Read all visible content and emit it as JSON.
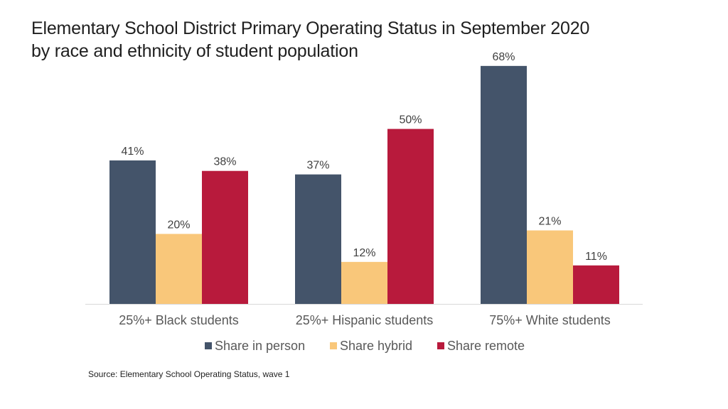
{
  "title": {
    "line1": "Elementary School District Primary Operating Status in September 2020",
    "line2": "by race and ethnicity of student population"
  },
  "source": "Source: Elementary School Operating Status, wave 1",
  "chart_data": {
    "type": "bar",
    "categories": [
      "25%+ Black students",
      "25%+ Hispanic students",
      "75%+ White students"
    ],
    "series": [
      {
        "name": "Share in person",
        "color": "#44546a",
        "values": [
          41,
          37,
          68
        ],
        "labels": [
          "41%",
          "37%",
          "68%"
        ]
      },
      {
        "name": "Share hybrid",
        "color": "#f9c77a",
        "values": [
          20,
          12,
          21
        ],
        "labels": [
          "20%",
          "12%",
          "21%"
        ]
      },
      {
        "name": "Share remote",
        "color": "#b81a3c",
        "values": [
          38,
          50,
          11
        ],
        "labels": [
          "38%",
          "50%",
          "11%"
        ]
      }
    ],
    "ylim": [
      0,
      70
    ],
    "grid": false,
    "legend_position": "bottom"
  }
}
